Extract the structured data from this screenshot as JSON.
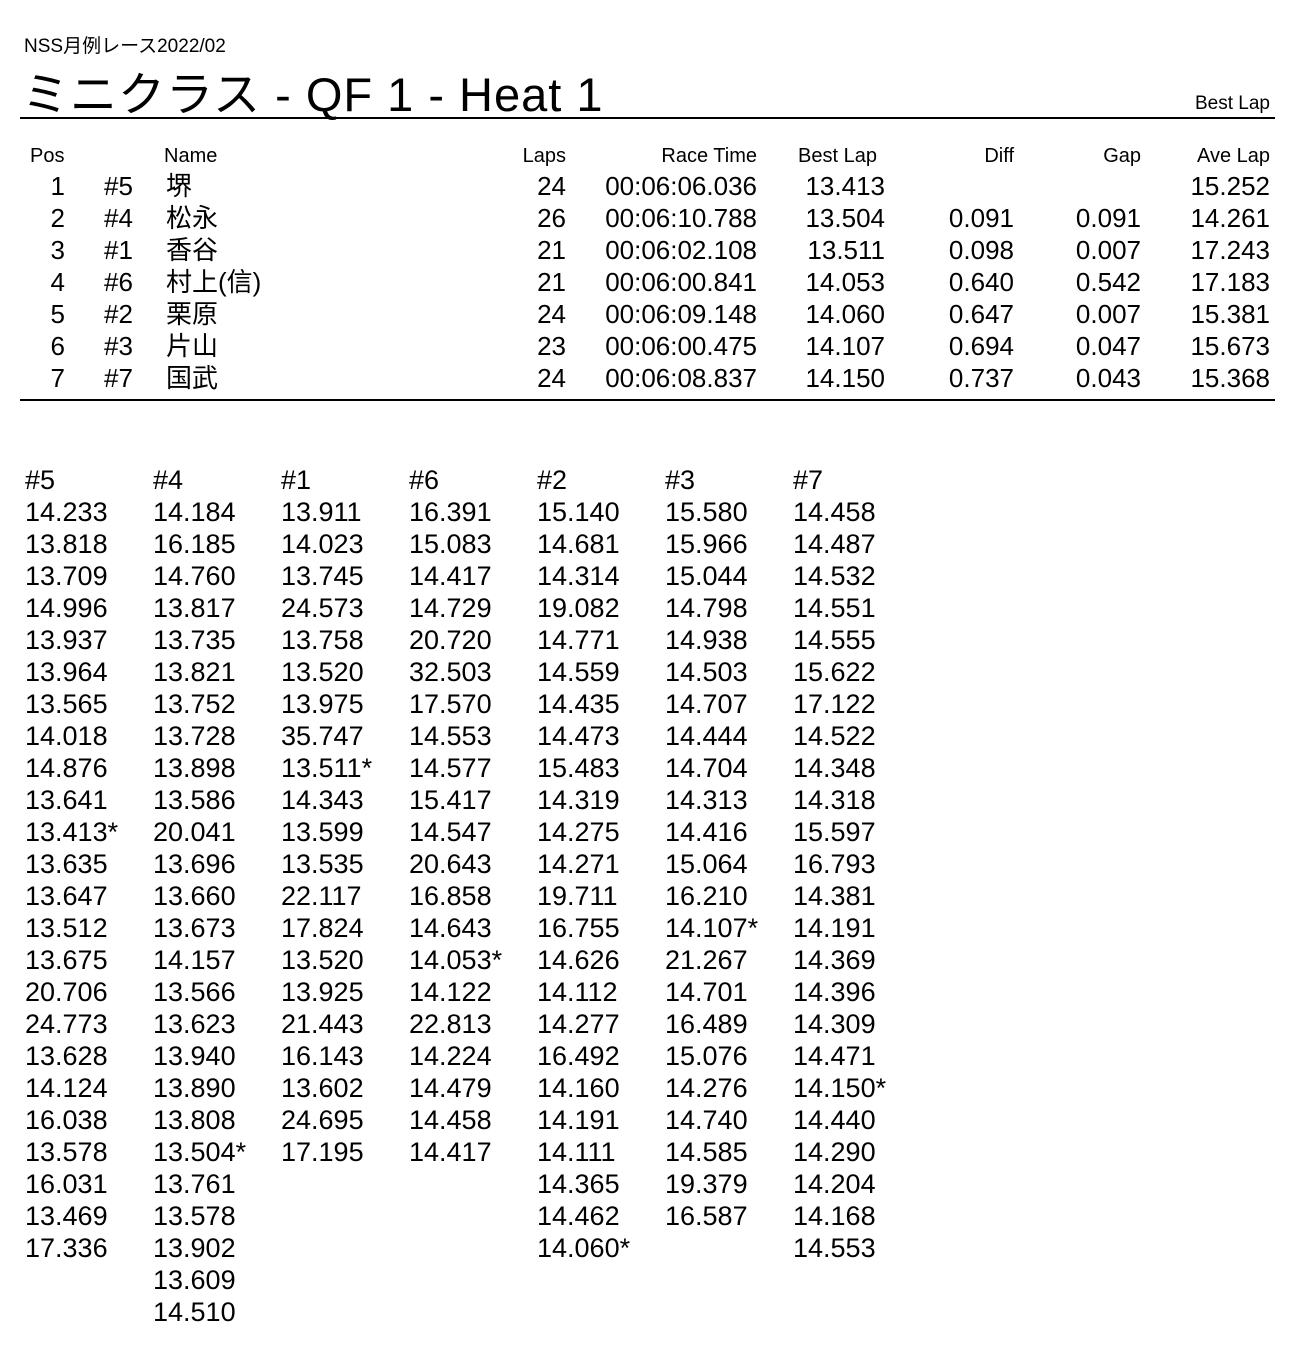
{
  "header": {
    "event": "NSS月例レース2022/02",
    "title": "ミニクラス  -  QF 1  -  Heat 1",
    "subtitle": "Best Lap"
  },
  "results": {
    "columns": {
      "pos": "Pos",
      "name": "Name",
      "laps": "Laps",
      "race_time": "Race Time",
      "best_lap": "Best Lap",
      "diff": "Diff",
      "gap": "Gap",
      "ave_lap": "Ave Lap"
    },
    "rows": [
      {
        "pos": "1",
        "car": "#5",
        "name": "堺",
        "laps": "24",
        "race_time": "00:06:06.036",
        "best_lap": "13.413",
        "diff": "",
        "gap": "",
        "ave_lap": "15.252"
      },
      {
        "pos": "2",
        "car": "#4",
        "name": "松永",
        "laps": "26",
        "race_time": "00:06:10.788",
        "best_lap": "13.504",
        "diff": "0.091",
        "gap": "0.091",
        "ave_lap": "14.261"
      },
      {
        "pos": "3",
        "car": "#1",
        "name": "香谷",
        "laps": "21",
        "race_time": "00:06:02.108",
        "best_lap": "13.511",
        "diff": "0.098",
        "gap": "0.007",
        "ave_lap": "17.243"
      },
      {
        "pos": "4",
        "car": "#6",
        "name": "村上(信)",
        "laps": "21",
        "race_time": "00:06:00.841",
        "best_lap": "14.053",
        "diff": "0.640",
        "gap": "0.542",
        "ave_lap": "17.183"
      },
      {
        "pos": "5",
        "car": "#2",
        "name": "栗原",
        "laps": "24",
        "race_time": "00:06:09.148",
        "best_lap": "14.060",
        "diff": "0.647",
        "gap": "0.007",
        "ave_lap": "15.381"
      },
      {
        "pos": "6",
        "car": "#3",
        "name": "片山",
        "laps": "23",
        "race_time": "00:06:00.475",
        "best_lap": "14.107",
        "diff": "0.694",
        "gap": "0.047",
        "ave_lap": "15.673"
      },
      {
        "pos": "7",
        "car": "#7",
        "name": "国武",
        "laps": "24",
        "race_time": "00:06:08.837",
        "best_lap": "14.150",
        "diff": "0.737",
        "gap": "0.043",
        "ave_lap": "15.368"
      }
    ]
  },
  "laps": [
    {
      "car": "#5",
      "times": [
        "14.233",
        "13.818",
        "13.709",
        "14.996",
        "13.937",
        "13.964",
        "13.565",
        "14.018",
        "14.876",
        "13.641",
        "13.413*",
        "13.635",
        "13.647",
        "13.512",
        "13.675",
        "20.706",
        "24.773",
        "13.628",
        "14.124",
        "16.038",
        "13.578",
        "16.031",
        "13.469",
        "17.336"
      ]
    },
    {
      "car": "#4",
      "times": [
        "14.184",
        "16.185",
        "14.760",
        "13.817",
        "13.735",
        "13.821",
        "13.752",
        "13.728",
        "13.898",
        "13.586",
        "20.041",
        "13.696",
        "13.660",
        "13.673",
        "14.157",
        "13.566",
        "13.623",
        "13.940",
        "13.890",
        "13.808",
        "13.504*",
        "13.761",
        "13.578",
        "13.902",
        "13.609",
        "14.510"
      ]
    },
    {
      "car": "#1",
      "times": [
        "13.911",
        "14.023",
        "13.745",
        "24.573",
        "13.758",
        "13.520",
        "13.975",
        "35.747",
        "13.511*",
        "14.343",
        "13.599",
        "13.535",
        "22.117",
        "17.824",
        "13.520",
        "13.925",
        "21.443",
        "16.143",
        "13.602",
        "24.695",
        "17.195"
      ]
    },
    {
      "car": "#6",
      "times": [
        "16.391",
        "15.083",
        "14.417",
        "14.729",
        "20.720",
        "32.503",
        "17.570",
        "14.553",
        "14.577",
        "15.417",
        "14.547",
        "20.643",
        "16.858",
        "14.643",
        "14.053*",
        "14.122",
        "22.813",
        "14.224",
        "14.479",
        "14.458",
        "14.417"
      ]
    },
    {
      "car": "#2",
      "times": [
        "15.140",
        "14.681",
        "14.314",
        "19.082",
        "14.771",
        "14.559",
        "14.435",
        "14.473",
        "15.483",
        "14.319",
        "14.275",
        "14.271",
        "19.711",
        "16.755",
        "14.626",
        "14.112",
        "14.277",
        "16.492",
        "14.160",
        "14.191",
        "14.111",
        "14.365",
        "14.462",
        "14.060*"
      ]
    },
    {
      "car": "#3",
      "times": [
        "15.580",
        "15.966",
        "15.044",
        "14.798",
        "14.938",
        "14.503",
        "14.707",
        "14.444",
        "14.704",
        "14.313",
        "14.416",
        "15.064",
        "16.210",
        "14.107*",
        "21.267",
        "14.701",
        "16.489",
        "15.076",
        "14.276",
        "14.740",
        "14.585",
        "19.379",
        "16.587"
      ]
    },
    {
      "car": "#7",
      "times": [
        "14.458",
        "14.487",
        "14.532",
        "14.551",
        "14.555",
        "15.622",
        "17.122",
        "14.522",
        "14.348",
        "14.318",
        "15.597",
        "16.793",
        "14.381",
        "14.191",
        "14.369",
        "14.396",
        "14.309",
        "14.471",
        "14.150*",
        "14.440",
        "14.290",
        "14.204",
        "14.168",
        "14.553"
      ]
    }
  ]
}
